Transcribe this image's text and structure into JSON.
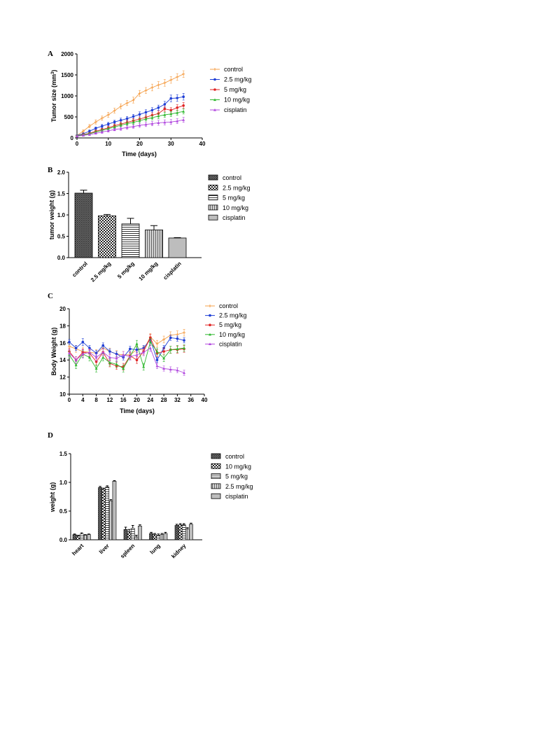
{
  "colors": {
    "control": "#f5a04a",
    "dose_2_5": "#1f3fd6",
    "dose_5": "#e02424",
    "dose_10": "#2fb82f",
    "cisplatin": "#b24adf"
  },
  "chart_data": [
    {
      "panel": "A",
      "type": "line",
      "xlabel": "Time (days)",
      "ylabel": "Tumor size (mm",
      "ylabel_sup": "3",
      "ylabel_end": ")",
      "xlim": [
        0,
        40
      ],
      "ylim": [
        0,
        2000
      ],
      "xticks": [
        0,
        10,
        20,
        30,
        40
      ],
      "yticks": [
        0,
        500,
        1000,
        1500,
        2000
      ],
      "legend_position": "right",
      "x": [
        0,
        2,
        4,
        6,
        8,
        10,
        12,
        14,
        16,
        18,
        20,
        22,
        24,
        26,
        28,
        30,
        32,
        34
      ],
      "series": [
        {
          "name": "control",
          "color_key": "control",
          "marker": "plus",
          "values": [
            60,
            160,
            280,
            380,
            470,
            550,
            650,
            750,
            830,
            900,
            1060,
            1130,
            1200,
            1260,
            1310,
            1380,
            1450,
            1520
          ],
          "error": [
            20,
            30,
            40,
            50,
            50,
            60,
            60,
            60,
            60,
            70,
            70,
            70,
            80,
            80,
            80,
            80,
            80,
            80
          ]
        },
        {
          "name": "2.5 mg/kg",
          "color_key": "dose_2_5",
          "marker": "circle",
          "values": [
            60,
            100,
            160,
            230,
            280,
            330,
            380,
            420,
            460,
            510,
            560,
            610,
            660,
            720,
            800,
            940,
            950,
            980
          ],
          "error": [
            15,
            20,
            30,
            30,
            40,
            40,
            40,
            50,
            50,
            50,
            60,
            60,
            60,
            60,
            70,
            80,
            80,
            80
          ]
        },
        {
          "name": "5 mg/kg",
          "color_key": "dose_5",
          "marker": "circle",
          "values": [
            50,
            80,
            110,
            160,
            200,
            240,
            290,
            330,
            370,
            410,
            450,
            490,
            540,
            580,
            690,
            660,
            720,
            770
          ],
          "error": [
            15,
            20,
            20,
            30,
            30,
            40,
            40,
            40,
            50,
            50,
            50,
            50,
            60,
            60,
            60,
            60,
            70,
            70
          ]
        },
        {
          "name": "10 mg/kg",
          "color_key": "dose_10",
          "marker": "triangle",
          "values": [
            50,
            70,
            100,
            140,
            180,
            220,
            260,
            300,
            340,
            370,
            410,
            450,
            480,
            520,
            550,
            570,
            600,
            630
          ],
          "error": [
            15,
            20,
            20,
            30,
            30,
            30,
            40,
            40,
            40,
            50,
            50,
            50,
            50,
            60,
            60,
            60,
            60,
            60
          ]
        },
        {
          "name": "cisplatin",
          "color_key": "cisplatin",
          "marker": "triangle",
          "values": [
            40,
            60,
            80,
            110,
            140,
            170,
            200,
            220,
            250,
            270,
            300,
            320,
            340,
            360,
            370,
            380,
            400,
            430
          ],
          "error": [
            15,
            20,
            20,
            20,
            30,
            30,
            30,
            40,
            40,
            40,
            50,
            50,
            50,
            60,
            60,
            60,
            60,
            60
          ]
        }
      ]
    },
    {
      "panel": "B",
      "type": "bar",
      "xlabel": "",
      "ylabel": "tumor weight (g)",
      "ylim": [
        0,
        2.0
      ],
      "yticks": [
        "0.0",
        "0.5",
        "1.0",
        "1.5",
        "2.0"
      ],
      "legend_position": "right",
      "categories": [
        "control",
        "2.5 mg/kg",
        "5 mg/kg",
        "10 mg/kg",
        "cisplatin"
      ],
      "values": [
        1.51,
        0.98,
        0.79,
        0.65,
        0.46
      ],
      "error": [
        0.07,
        0.03,
        0.13,
        0.1,
        0.01
      ],
      "patterns": [
        "dense",
        "checker",
        "hlines",
        "vlines",
        "grey"
      ]
    },
    {
      "panel": "C",
      "type": "line",
      "xlabel": "Time (days)",
      "ylabel": "Body Weight (g)",
      "xlim": [
        0,
        40
      ],
      "ylim": [
        10,
        20
      ],
      "xticks": [
        0,
        4,
        8,
        12,
        16,
        20,
        24,
        28,
        32,
        36,
        40
      ],
      "yticks": [
        10,
        12,
        14,
        16,
        18,
        20
      ],
      "legend_position": "top-right",
      "series": [
        {
          "name": "control",
          "color_key": "control",
          "marker": "plus",
          "x": [
            0,
            2,
            4,
            6,
            8,
            10,
            12,
            14,
            16,
            18,
            20,
            22,
            24,
            26,
            28,
            30,
            32,
            34
          ],
          "values": [
            15.6,
            15.3,
            15.0,
            14.9,
            14.8,
            15.4,
            15.0,
            14.7,
            14.6,
            14.6,
            15.2,
            15.2,
            16.7,
            15.9,
            16.4,
            16.9,
            17.0,
            17.2
          ],
          "error": [
            0.4,
            0.4,
            0.5,
            0.4,
            0.4,
            0.4,
            0.4,
            0.4,
            0.4,
            0.4,
            0.4,
            0.4,
            0.4,
            0.4,
            0.4,
            0.4,
            0.4,
            0.4
          ]
        },
        {
          "name": "2.5 mg/kg",
          "color_key": "dose_2_5",
          "marker": "circle",
          "x": [
            0,
            2,
            4,
            6,
            8,
            10,
            12,
            14,
            16,
            18,
            20,
            22,
            24,
            26,
            28,
            30,
            32,
            34
          ],
          "values": [
            16.1,
            15.4,
            16.1,
            15.4,
            14.8,
            15.7,
            15.0,
            14.7,
            14.3,
            15.3,
            15.2,
            15.4,
            16.4,
            14.0,
            15.4,
            16.6,
            16.5,
            16.3
          ],
          "error": [
            0.3,
            0.3,
            0.4,
            0.3,
            0.3,
            0.3,
            0.3,
            0.3,
            0.3,
            0.3,
            0.3,
            0.3,
            0.3,
            0.3,
            0.3,
            0.3,
            0.3,
            0.3
          ]
        },
        {
          "name": "5 mg/kg",
          "color_key": "dose_5",
          "marker": "circle",
          "x": [
            0,
            2,
            4,
            6,
            8,
            10,
            12,
            14,
            16,
            18,
            20,
            22,
            24,
            26,
            28,
            30,
            32,
            34
          ],
          "values": [
            15.0,
            14.0,
            14.9,
            14.8,
            13.8,
            14.9,
            13.6,
            13.3,
            13.2,
            14.5,
            14.0,
            15.0,
            16.6,
            14.8,
            15.0,
            15.2,
            15.2,
            15.3
          ],
          "error": [
            0.4,
            0.4,
            0.4,
            0.4,
            0.4,
            0.4,
            0.4,
            0.4,
            0.4,
            0.4,
            0.4,
            0.4,
            0.4,
            0.4,
            0.4,
            0.4,
            0.4,
            0.4
          ]
        },
        {
          "name": "10 mg/kg",
          "color_key": "dose_10",
          "marker": "triangle",
          "x": [
            0,
            2,
            4,
            6,
            8,
            10,
            12,
            14,
            16,
            18,
            20,
            22,
            24,
            26,
            28,
            30,
            32,
            34
          ],
          "values": [
            14.6,
            13.4,
            14.7,
            14.3,
            13.0,
            14.3,
            13.7,
            13.5,
            13.0,
            14.4,
            15.9,
            13.2,
            16.1,
            15.0,
            14.2,
            15.2,
            15.3,
            15.4
          ],
          "error": [
            0.4,
            0.4,
            0.4,
            0.4,
            0.4,
            0.4,
            0.4,
            0.4,
            0.4,
            0.4,
            0.4,
            0.4,
            0.4,
            0.4,
            0.4,
            0.4,
            0.4,
            0.4
          ]
        },
        {
          "name": "cisplatin",
          "color_key": "cisplatin",
          "marker": "triangle",
          "x": [
            0,
            2,
            4,
            6,
            8,
            10,
            12,
            14,
            16,
            18,
            20,
            22,
            24,
            26,
            28,
            30,
            32,
            34
          ],
          "values": [
            14.8,
            14.0,
            14.7,
            14.9,
            14.3,
            14.9,
            14.3,
            14.2,
            14.6,
            14.4,
            14.6,
            14.9,
            15.4,
            13.3,
            13.0,
            12.9,
            12.8,
            12.5
          ],
          "error": [
            0.4,
            0.4,
            0.5,
            0.4,
            0.4,
            0.4,
            0.4,
            0.4,
            0.4,
            0.4,
            0.4,
            0.4,
            0.4,
            0.3,
            0.3,
            0.3,
            0.3,
            0.3
          ]
        }
      ]
    },
    {
      "panel": "D",
      "type": "bar",
      "xlabel": "",
      "ylabel": "weight (g)",
      "ylim": [
        0,
        1.5
      ],
      "yticks": [
        "0.0",
        "0.5",
        "1.0",
        "1.5"
      ],
      "legend_position": "right",
      "categories": [
        "heart",
        "liver",
        "spleen",
        "lung",
        "kidney"
      ],
      "series": [
        {
          "name": "control",
          "pattern": "dense",
          "values": [
            0.09,
            0.91,
            0.18,
            0.11,
            0.25
          ],
          "error": [
            0.01,
            0.02,
            0.04,
            0.02,
            0.02
          ]
        },
        {
          "name": "10 mg/kg",
          "pattern": "checker",
          "values": [
            0.07,
            0.88,
            0.14,
            0.09,
            0.26
          ],
          "error": [
            0.01,
            0.02,
            0.04,
            0.02,
            0.02
          ]
        },
        {
          "name": "5 mg/kg",
          "pattern": "hlines",
          "values": [
            0.1,
            0.92,
            0.2,
            0.08,
            0.26
          ],
          "error": [
            0.02,
            0.02,
            0.05,
            0.02,
            0.02
          ]
        },
        {
          "name": "2.5 mg/kg",
          "pattern": "vlines",
          "values": [
            0.08,
            0.68,
            0.05,
            0.09,
            0.19
          ],
          "error": [
            0.01,
            0.02,
            0.03,
            0.02,
            0.02
          ]
        },
        {
          "name": "cisplatin",
          "pattern": "grey",
          "values": [
            0.09,
            1.02,
            0.24,
            0.11,
            0.27
          ],
          "error": [
            0.01,
            0.01,
            0.02,
            0.02,
            0.02
          ]
        }
      ],
      "legend_order": [
        "control",
        "10 mg/kg",
        "5 mg/kg",
        "2.5 mg/kg",
        "cisplatin"
      ]
    }
  ]
}
